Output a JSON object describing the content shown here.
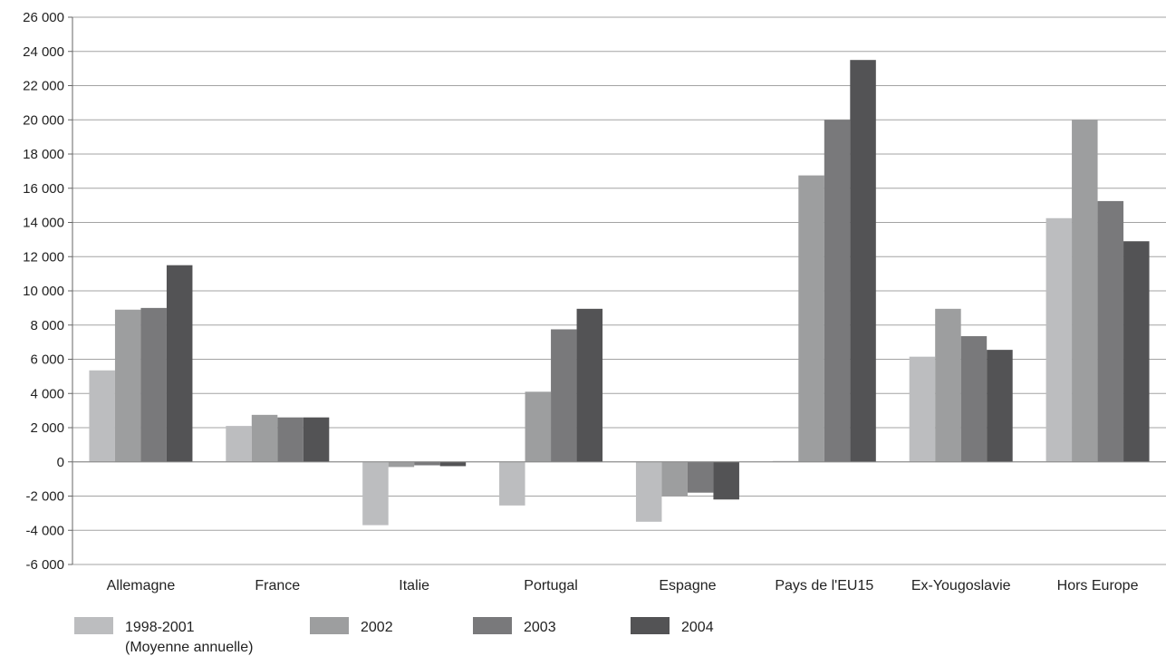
{
  "chart_data": {
    "type": "bar",
    "categories": [
      "Allemagne",
      "France",
      "Italie",
      "Portugal",
      "Espagne",
      "Pays de l'EU15",
      "Ex-Yougoslavie",
      "Hors Europe"
    ],
    "series": [
      {
        "name": "1998-2001",
        "name_sub": "(Moyenne annuelle)",
        "color": "#bcbdbf",
        "values": [
          5350,
          2100,
          -3700,
          -2550,
          -3500,
          0,
          6150,
          14250
        ]
      },
      {
        "name": "2002",
        "color": "#9d9e9f",
        "values": [
          8900,
          2750,
          -300,
          4100,
          -2000,
          16750,
          8950,
          20000
        ]
      },
      {
        "name": "2003",
        "color": "#79797b",
        "values": [
          9000,
          2600,
          -200,
          7750,
          -1800,
          20000,
          7350,
          15250
        ]
      },
      {
        "name": "2004",
        "color": "#535355",
        "values": [
          11500,
          2600,
          -250,
          8950,
          -2200,
          23500,
          6550,
          12900
        ]
      }
    ],
    "ylim": [
      -6000,
      26000
    ],
    "yticks": [
      -6000,
      -4000,
      -2000,
      0,
      2000,
      4000,
      6000,
      8000,
      10000,
      12000,
      14000,
      16000,
      18000,
      20000,
      22000,
      24000,
      26000
    ],
    "ytick_labels": [
      "-6 000",
      "-4 000",
      "-2 000",
      "0",
      "2 000",
      "4 000",
      "6 000",
      "8 000",
      "10 000",
      "12 000",
      "14 000",
      "16 000",
      "18 000",
      "20 000",
      "22 000",
      "24 000",
      "26 000"
    ],
    "grid": true,
    "legend": "bottom-left",
    "title": "",
    "xlabel": "",
    "ylabel": ""
  }
}
